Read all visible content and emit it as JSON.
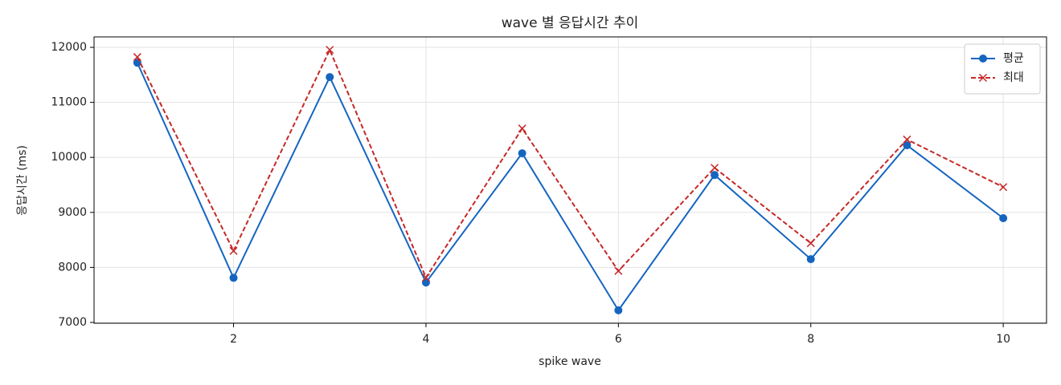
{
  "chart_data": {
    "type": "line",
    "title": "wave 별 응답시간 추이",
    "x_label": "spike wave",
    "y_label": "응답시간 (ms)",
    "x": [
      1,
      2,
      3,
      4,
      5,
      6,
      7,
      8,
      9,
      10
    ],
    "series": [
      {
        "name": "평균",
        "color": "#1565c0",
        "style": "solid",
        "marker": "circle",
        "values": [
          11720,
          7810,
          11460,
          7725,
          10075,
          7220,
          9680,
          8150,
          10220,
          8895
        ]
      },
      {
        "name": "최대",
        "color": "#c62828",
        "style": "dashed",
        "marker": "x",
        "values": [
          11825,
          8300,
          11955,
          7815,
          10525,
          7935,
          9810,
          8440,
          10325,
          9460
        ]
      }
    ],
    "xlim": [
      0.55,
      10.45
    ],
    "xticks": [
      2,
      4,
      6,
      8,
      10
    ],
    "ylim": [
      6985,
      12190
    ],
    "yticks": [
      7000,
      8000,
      9000,
      10000,
      11000,
      12000
    ],
    "grid": true,
    "legend": "upper right"
  }
}
